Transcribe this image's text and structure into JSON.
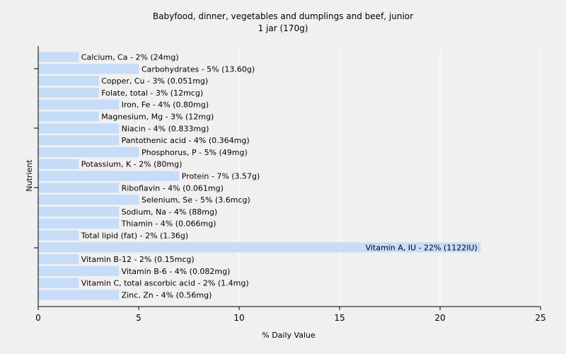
{
  "chart_data": {
    "type": "bar",
    "orientation": "horizontal",
    "title": "Babyfood, dinner, vegetables and dumplings and beef, junior",
    "subtitle": "1 jar (170g)",
    "xlabel": "% Daily Value",
    "ylabel": "Nutrient",
    "xlim": [
      0,
      25
    ],
    "xticks": [
      0,
      5,
      10,
      15,
      20,
      25
    ],
    "grid": true,
    "bar_color": "#c6dcf8",
    "grid_color": "#ffffff",
    "background_color": "#f0f0f0",
    "categories": [
      "Calcium, Ca",
      "Carbohydrates",
      "Copper, Cu",
      "Folate, total",
      "Iron, Fe",
      "Magnesium, Mg",
      "Niacin",
      "Pantothenic acid",
      "Phosphorus, P",
      "Potassium, K",
      "Protein",
      "Riboflavin",
      "Selenium, Se",
      "Sodium, Na",
      "Thiamin",
      "Total lipid (fat)",
      "Vitamin A, IU",
      "Vitamin B-12",
      "Vitamin B-6",
      "Vitamin C, total ascorbic acid",
      "Zinc, Zn"
    ],
    "values": [
      2,
      5,
      3,
      3,
      4,
      3,
      4,
      4,
      5,
      2,
      7,
      4,
      5,
      4,
      4,
      2,
      22,
      2,
      4,
      2,
      4
    ],
    "labels": [
      "Calcium, Ca - 2% (24mg)",
      "Carbohydrates - 5% (13.60g)",
      "Copper, Cu - 3% (0.051mg)",
      "Folate, total - 3% (12mcg)",
      "Iron, Fe - 4% (0.80mg)",
      "Magnesium, Mg - 3% (12mg)",
      "Niacin - 4% (0.833mg)",
      "Pantothenic acid - 4% (0.364mg)",
      "Phosphorus, P - 5% (49mg)",
      "Potassium, K - 2% (80mg)",
      "Protein - 7% (3.57g)",
      "Riboflavin - 4% (0.061mg)",
      "Selenium, Se - 5% (3.6mcg)",
      "Sodium, Na - 4% (88mg)",
      "Thiamin - 4% (0.066mg)",
      "Total lipid (fat) - 2% (1.36g)",
      "Vitamin A, IU - 22% (1122IU)",
      "Vitamin B-12 - 2% (0.15mcg)",
      "Vitamin B-6 - 4% (0.082mg)",
      "Vitamin C, total ascorbic acid - 2% (1.4mg)",
      "Zinc, Zn - 4% (0.56mg)"
    ]
  }
}
